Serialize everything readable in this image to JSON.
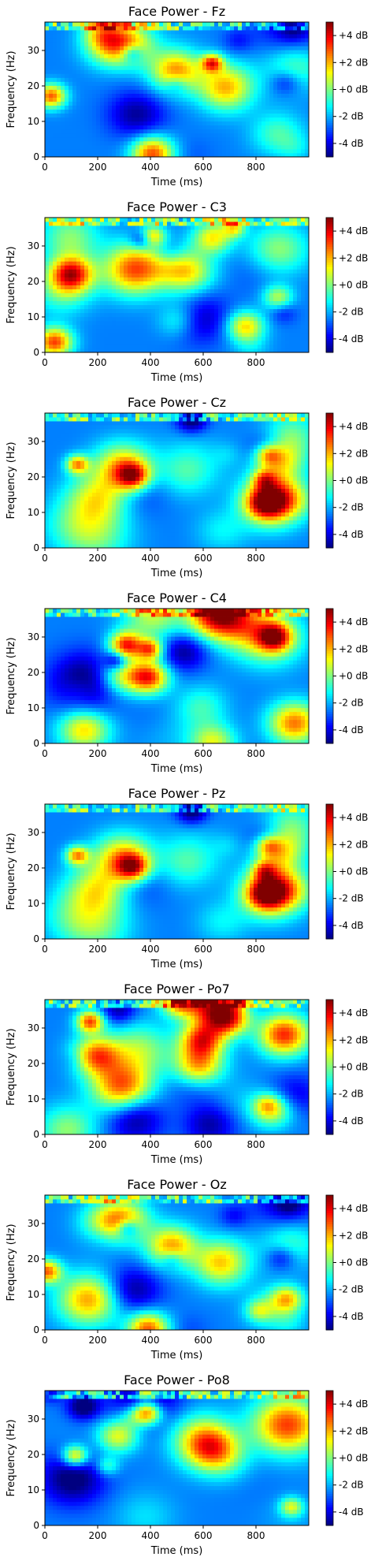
{
  "colorbar": {
    "colormap": "jet",
    "unit": "dB",
    "ticks": [
      "+4 dB",
      "+2 dB",
      "+0 dB",
      "-2 dB",
      "-4 dB"
    ],
    "tick_values": [
      4,
      2,
      0,
      -2,
      -4
    ],
    "range": [
      -5,
      5
    ]
  },
  "chart_data": [
    {
      "type": "heatmap",
      "title": "Face Power - Fz",
      "xlabel": "Time (ms)",
      "ylabel": "Frequency (Hz)",
      "x_ticks": [
        0,
        200,
        400,
        600,
        800
      ],
      "y_ticks": [
        0,
        10,
        20,
        30
      ],
      "xlim": [
        0,
        1000
      ],
      "ylim": [
        0,
        38
      ],
      "seed": 3
    },
    {
      "type": "heatmap",
      "title": "Face Power - C3",
      "xlabel": "Time (ms)",
      "ylabel": "Frequency (Hz)",
      "x_ticks": [
        0,
        200,
        400,
        600,
        800
      ],
      "y_ticks": [
        0,
        10,
        20,
        30
      ],
      "xlim": [
        0,
        1000
      ],
      "ylim": [
        0,
        38
      ],
      "seed": 11
    },
    {
      "type": "heatmap",
      "title": "Face Power - Cz",
      "xlabel": "Time (ms)",
      "ylabel": "Frequency (Hz)",
      "x_ticks": [
        0,
        200,
        400,
        600,
        800
      ],
      "y_ticks": [
        0,
        10,
        20,
        30
      ],
      "xlim": [
        0,
        1000
      ],
      "ylim": [
        0,
        38
      ],
      "seed": 23
    },
    {
      "type": "heatmap",
      "title": "Face Power - C4",
      "xlabel": "Time (ms)",
      "ylabel": "Frequency (Hz)",
      "x_ticks": [
        0,
        200,
        400,
        600,
        800
      ],
      "y_ticks": [
        0,
        10,
        20,
        30
      ],
      "xlim": [
        0,
        1000
      ],
      "ylim": [
        0,
        38
      ],
      "seed": 37
    },
    {
      "type": "heatmap",
      "title": "Face Power - Pz",
      "xlabel": "Time (ms)",
      "ylabel": "Frequency (Hz)",
      "x_ticks": [
        0,
        200,
        400,
        600,
        800
      ],
      "y_ticks": [
        0,
        10,
        20,
        30
      ],
      "xlim": [
        0,
        1000
      ],
      "ylim": [
        0,
        38
      ],
      "seed": 23
    },
    {
      "type": "heatmap",
      "title": "Face Power - Po7",
      "xlabel": "Time (ms)",
      "ylabel": "Frequency (Hz)",
      "x_ticks": [
        0,
        200,
        400,
        600,
        800
      ],
      "y_ticks": [
        0,
        10,
        20,
        30
      ],
      "xlim": [
        0,
        1000
      ],
      "ylim": [
        0,
        38
      ],
      "seed": 51
    },
    {
      "type": "heatmap",
      "title": "Face Power - Oz",
      "xlabel": "Time (ms)",
      "ylabel": "Frequency (Hz)",
      "x_ticks": [
        0,
        200,
        400,
        600,
        800
      ],
      "y_ticks": [
        0,
        10,
        20,
        30
      ],
      "xlim": [
        0,
        1000
      ],
      "ylim": [
        0,
        38
      ],
      "seed": 67
    },
    {
      "type": "heatmap",
      "title": "Face Power - Po8",
      "xlabel": "Time (ms)",
      "ylabel": "Frequency (Hz)",
      "x_ticks": [
        0,
        200,
        400,
        600,
        800
      ],
      "y_ticks": [
        0,
        10,
        20,
        30
      ],
      "xlim": [
        0,
        1000
      ],
      "ylim": [
        0,
        38
      ],
      "seed": 89
    }
  ]
}
